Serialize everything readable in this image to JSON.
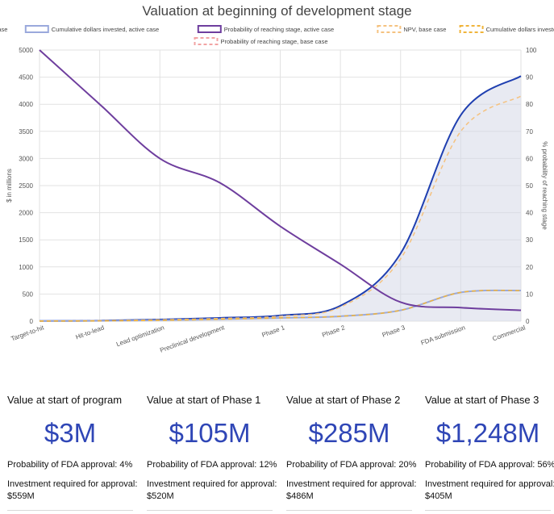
{
  "chart_data": {
    "type": "line",
    "title": "Valuation at beginning of development stage",
    "categories": [
      "Target-to-hit",
      "Hit-to-lead",
      "Lead optimization",
      "Preclinical development",
      "Phase 1",
      "Phase 2",
      "Phase 3",
      "FDA submission",
      "Commercial"
    ],
    "ylabel": "$ in millions",
    "y2label": "% probability of reaching stage",
    "ylim": [
      0,
      5000
    ],
    "y2lim": [
      0,
      100
    ],
    "yticks": [
      "0",
      "500",
      "1000",
      "1500",
      "2000",
      "2500",
      "3000",
      "3500",
      "4000",
      "4500",
      "5000"
    ],
    "y2ticks": [
      "0",
      "10",
      "20",
      "30",
      "40",
      "50",
      "60",
      "70",
      "80",
      "90",
      "100"
    ],
    "grid": true,
    "legend_position": "top",
    "series": [
      {
        "name": "NPV, active case",
        "axis": "left",
        "style": "solid",
        "fill": true,
        "color": "#1f3fb0",
        "values": [
          3,
          10,
          30,
          60,
          105,
          285,
          1248,
          3800,
          4520
        ]
      },
      {
        "name": "Cumulative dollars invested, active case",
        "axis": "left",
        "style": "solid",
        "fill": false,
        "color": "#9aa9dc",
        "values": [
          0,
          5,
          15,
          35,
          60,
          90,
          200,
          530,
          565
        ]
      },
      {
        "name": "Probability of reaching stage, active case",
        "axis": "right",
        "style": "solid",
        "fill": false,
        "color": "#6e3e9e",
        "values": [
          100,
          80,
          60,
          51,
          35,
          21,
          7,
          5,
          4
        ]
      },
      {
        "name": "NPV, base case",
        "axis": "left",
        "style": "dashed",
        "fill": false,
        "color": "#f5c27f",
        "values": [
          3,
          8,
          25,
          50,
          90,
          260,
          1150,
          3500,
          4150
        ]
      },
      {
        "name": "Cumulative dollars invested, base case",
        "axis": "left",
        "style": "dashed",
        "fill": false,
        "color": "#f0b43a",
        "values": [
          0,
          5,
          15,
          35,
          60,
          90,
          200,
          530,
          565
        ]
      },
      {
        "name": "Probability of reaching stage, base case",
        "axis": "right",
        "style": "dashed",
        "fill": false,
        "color": "#f2a3a3",
        "values": [
          100,
          80,
          60,
          51,
          35,
          21,
          7,
          5,
          4
        ]
      }
    ]
  },
  "cards": [
    {
      "title": "Value at start of program",
      "value": "$3M",
      "probability": "Probability of FDA approval: 4%",
      "investment_label": "Investment required for approval:",
      "investment_value": "$559M"
    },
    {
      "title": "Value at start of Phase 1",
      "value": "$105M",
      "probability": "Probability of FDA approval: 12%",
      "investment_label": "Investment required for approval:",
      "investment_value": "$520M"
    },
    {
      "title": "Value at start of Phase 2",
      "value": "$285M",
      "probability": "Probability of FDA approval: 20%",
      "investment_label": "Investment required for approval:",
      "investment_value": "$486M"
    },
    {
      "title": "Value at start of Phase 3",
      "value": "$1,248M",
      "probability": "Probability of FDA approval: 56%",
      "investment_label": "Investment required for approval:",
      "investment_value": "$405M"
    }
  ]
}
